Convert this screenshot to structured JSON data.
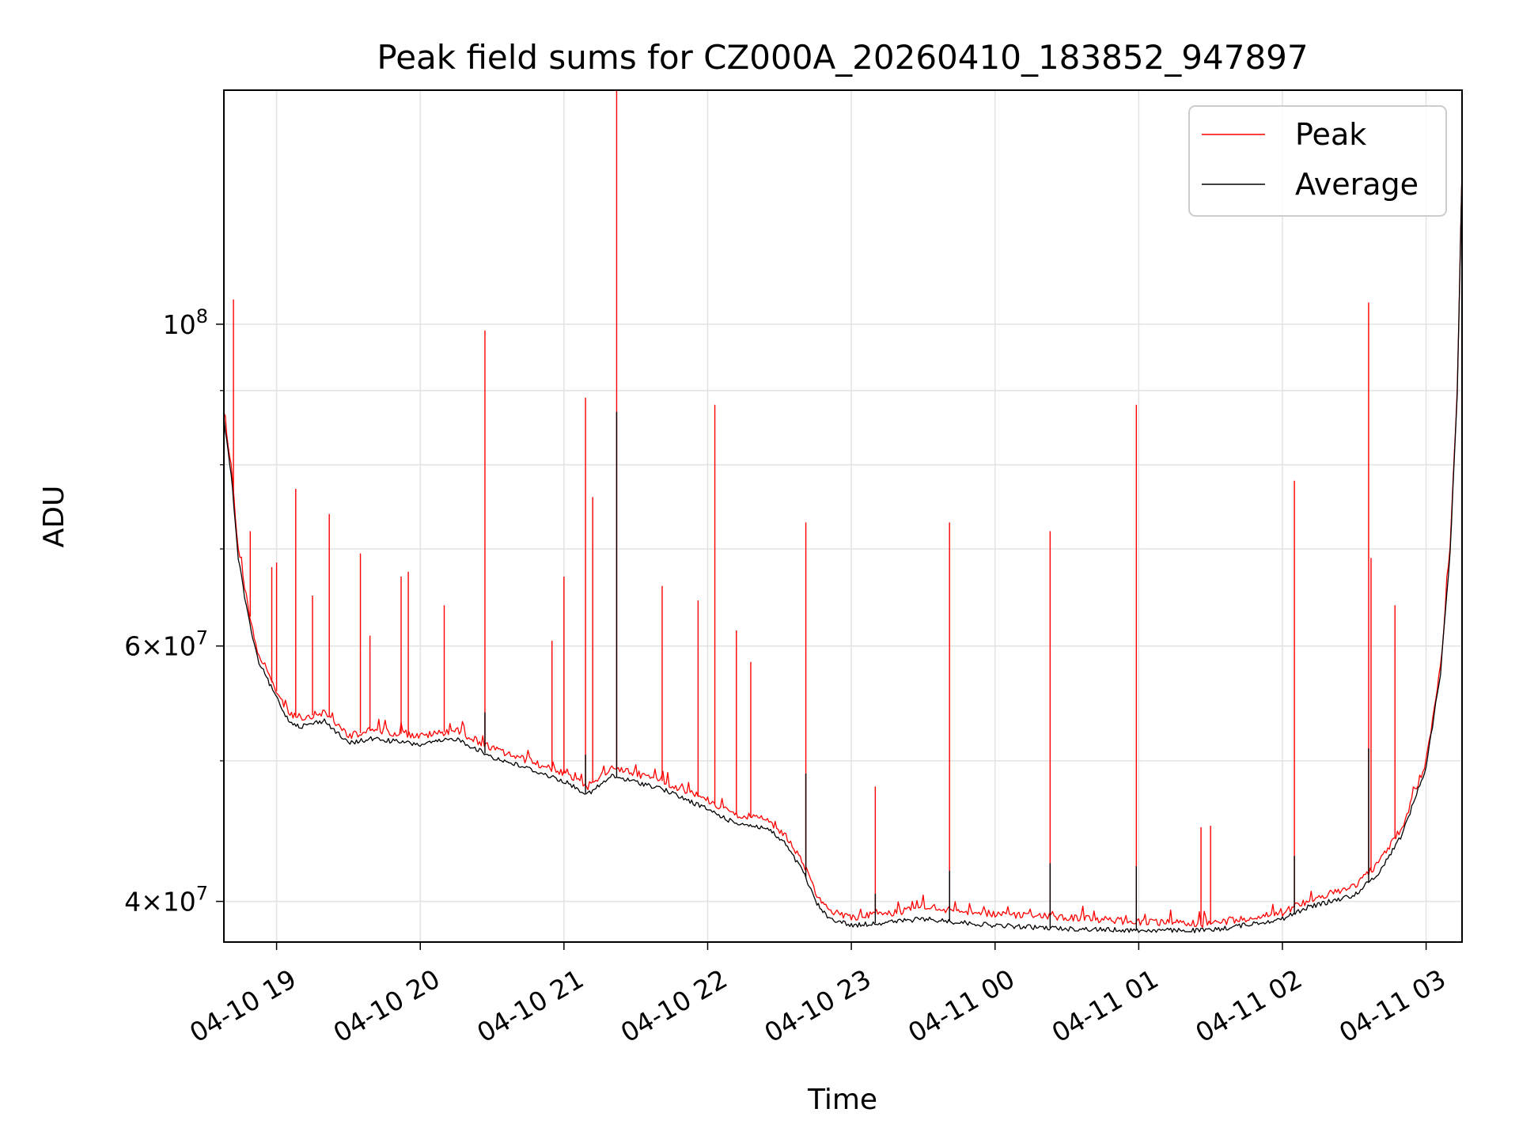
{
  "chart_data": {
    "type": "line",
    "title": "Peak field sums for CZ000A_20260410_183852_947897",
    "xlabel": "Time",
    "ylabel": "ADU",
    "yscale": "log",
    "xlim": [
      "2026-04-10 18:38",
      "2026-04-11 03:15"
    ],
    "ylim": [
      37500000,
      145000000
    ],
    "x_ticks": [
      {
        "value": "2026-04-10 19:00",
        "label": "04-10 19"
      },
      {
        "value": "2026-04-10 20:00",
        "label": "04-10 20"
      },
      {
        "value": "2026-04-10 21:00",
        "label": "04-10 21"
      },
      {
        "value": "2026-04-10 22:00",
        "label": "04-10 22"
      },
      {
        "value": "2026-04-10 23:00",
        "label": "04-10 23"
      },
      {
        "value": "2026-04-11 00:00",
        "label": "04-11 00"
      },
      {
        "value": "2026-04-11 01:00",
        "label": "04-11 01"
      },
      {
        "value": "2026-04-11 02:00",
        "label": "04-11 02"
      },
      {
        "value": "2026-04-11 03:00",
        "label": "04-11 03"
      }
    ],
    "y_ticks": [
      {
        "value": 100000000,
        "base": "10",
        "exp": "8"
      },
      {
        "value": 60000000,
        "coef": "6",
        "times": "×",
        "base": "10",
        "exp": "7"
      },
      {
        "value": 40000000,
        "coef": "4",
        "times": "×",
        "base": "10",
        "exp": "7"
      }
    ],
    "y_minor_ticks": [
      50000000,
      70000000,
      80000000,
      90000000
    ],
    "grid": true,
    "legend_position": "top-right",
    "series": [
      {
        "name": "Peak",
        "color": "#ff0000",
        "x": [
          "2026-04-10 18:38",
          "2026-04-10 18:41",
          "2026-04-10 18:44",
          "2026-04-10 18:48",
          "2026-04-10 18:52",
          "2026-04-10 18:57",
          "2026-04-10 19:05",
          "2026-04-10 19:10",
          "2026-04-10 19:20",
          "2026-04-10 19:30",
          "2026-04-10 19:40",
          "2026-04-10 20:00",
          "2026-04-10 20:15",
          "2026-04-10 20:30",
          "2026-04-10 20:45",
          "2026-04-10 21:00",
          "2026-04-10 21:10",
          "2026-04-10 21:20",
          "2026-04-10 21:40",
          "2026-04-10 22:00",
          "2026-04-10 22:10",
          "2026-04-10 22:25",
          "2026-04-10 22:32",
          "2026-04-10 22:40",
          "2026-04-10 22:45",
          "2026-04-10 22:50",
          "2026-04-10 23:00",
          "2026-04-10 23:15",
          "2026-04-10 23:30",
          "2026-04-11 00:00",
          "2026-04-11 00:30",
          "2026-04-11 01:00",
          "2026-04-11 01:30",
          "2026-04-11 02:00",
          "2026-04-11 02:10",
          "2026-04-11 02:30",
          "2026-04-11 02:40",
          "2026-04-11 02:50",
          "2026-04-11 03:00",
          "2026-04-11 03:06",
          "2026-04-11 03:10",
          "2026-04-11 03:13",
          "2026-04-11 03:15"
        ],
        "y": [
          87000000,
          80000000,
          70000000,
          64000000,
          59500000,
          57000000,
          54000000,
          53500000,
          54000000,
          52000000,
          52500000,
          52000000,
          52500000,
          51000000,
          50000000,
          49000000,
          48000000,
          49500000,
          48500000,
          47000000,
          46000000,
          45500000,
          44500000,
          42500000,
          40500000,
          39500000,
          39000000,
          39200000,
          39600000,
          39200000,
          39000000,
          38700000,
          38600000,
          39300000,
          40000000,
          41000000,
          42500000,
          45000000,
          50000000,
          58000000,
          70000000,
          90000000,
          128000000
        ],
        "spikes": [
          {
            "x": "2026-04-10 18:42",
            "y": 104000000
          },
          {
            "x": "2026-04-10 18:49",
            "y": 72000000
          },
          {
            "x": "2026-04-10 18:58",
            "y": 68000000
          },
          {
            "x": "2026-04-10 19:00",
            "y": 68500000
          },
          {
            "x": "2026-04-10 19:08",
            "y": 77000000
          },
          {
            "x": "2026-04-10 19:15",
            "y": 65000000
          },
          {
            "x": "2026-04-10 19:22",
            "y": 74000000
          },
          {
            "x": "2026-04-10 19:35",
            "y": 69500000
          },
          {
            "x": "2026-04-10 19:39",
            "y": 61000000
          },
          {
            "x": "2026-04-10 19:52",
            "y": 67000000
          },
          {
            "x": "2026-04-10 19:55",
            "y": 67500000
          },
          {
            "x": "2026-04-10 20:10",
            "y": 64000000
          },
          {
            "x": "2026-04-10 20:27",
            "y": 99000000
          },
          {
            "x": "2026-04-10 20:55",
            "y": 60500000
          },
          {
            "x": "2026-04-10 21:00",
            "y": 67000000
          },
          {
            "x": "2026-04-10 21:09",
            "y": 89000000
          },
          {
            "x": "2026-04-10 21:12",
            "y": 76000000
          },
          {
            "x": "2026-04-10 21:22",
            "y": 145000000
          },
          {
            "x": "2026-04-10 21:41",
            "y": 66000000
          },
          {
            "x": "2026-04-10 21:56",
            "y": 64500000
          },
          {
            "x": "2026-04-10 22:03",
            "y": 88000000
          },
          {
            "x": "2026-04-10 22:12",
            "y": 61500000
          },
          {
            "x": "2026-04-10 22:18",
            "y": 58500000
          },
          {
            "x": "2026-04-10 22:41",
            "y": 73000000
          },
          {
            "x": "2026-04-10 23:10",
            "y": 48000000
          },
          {
            "x": "2026-04-10 23:41",
            "y": 73000000
          },
          {
            "x": "2026-04-11 00:23",
            "y": 72000000
          },
          {
            "x": "2026-04-11 00:59",
            "y": 88000000
          },
          {
            "x": "2026-04-11 01:26",
            "y": 45000000
          },
          {
            "x": "2026-04-11 01:30",
            "y": 45100000
          },
          {
            "x": "2026-04-11 02:05",
            "y": 78000000
          },
          {
            "x": "2026-04-11 02:36",
            "y": 103500000
          },
          {
            "x": "2026-04-11 02:37",
            "y": 69000000
          },
          {
            "x": "2026-04-11 02:47",
            "y": 64000000
          }
        ]
      },
      {
        "name": "Average",
        "color": "#000000",
        "x": [
          "2026-04-10 18:38",
          "2026-04-10 18:41",
          "2026-04-10 18:44",
          "2026-04-10 18:48",
          "2026-04-10 18:52",
          "2026-04-10 18:57",
          "2026-04-10 19:05",
          "2026-04-10 19:10",
          "2026-04-10 19:20",
          "2026-04-10 19:30",
          "2026-04-10 19:40",
          "2026-04-10 20:00",
          "2026-04-10 20:15",
          "2026-04-10 20:30",
          "2026-04-10 20:45",
          "2026-04-10 21:00",
          "2026-04-10 21:10",
          "2026-04-10 21:20",
          "2026-04-10 21:40",
          "2026-04-10 22:00",
          "2026-04-10 22:10",
          "2026-04-10 22:25",
          "2026-04-10 22:32",
          "2026-04-10 22:40",
          "2026-04-10 22:45",
          "2026-04-10 22:50",
          "2026-04-10 23:00",
          "2026-04-10 23:15",
          "2026-04-10 23:30",
          "2026-04-11 00:00",
          "2026-04-11 00:30",
          "2026-04-11 01:00",
          "2026-04-11 01:30",
          "2026-04-11 02:00",
          "2026-04-11 02:10",
          "2026-04-11 02:30",
          "2026-04-11 02:40",
          "2026-04-11 02:50",
          "2026-04-11 03:00",
          "2026-04-11 03:06",
          "2026-04-11 03:10",
          "2026-04-11 03:13",
          "2026-04-11 03:15"
        ],
        "y": [
          86000000,
          79000000,
          69000000,
          63000000,
          58800000,
          56500000,
          53300000,
          52800000,
          53300000,
          51400000,
          51800000,
          51300000,
          51800000,
          50300000,
          49400000,
          48400000,
          47400000,
          48800000,
          47900000,
          46300000,
          45400000,
          44900000,
          43900000,
          41900000,
          40000000,
          39000000,
          38500000,
          38700000,
          38900000,
          38500000,
          38300000,
          38200000,
          38200000,
          38900000,
          39600000,
          40400000,
          41800000,
          44500000,
          49500000,
          57500000,
          69500000,
          89500000,
          128000000
        ],
        "spikes": [
          {
            "x": "2026-04-10 20:27",
            "y": 54000000
          },
          {
            "x": "2026-04-10 21:09",
            "y": 50500000
          },
          {
            "x": "2026-04-10 21:22",
            "y": 87000000
          },
          {
            "x": "2026-04-10 22:41",
            "y": 49000000
          },
          {
            "x": "2026-04-10 23:10",
            "y": 40500000
          },
          {
            "x": "2026-04-10 23:41",
            "y": 42000000
          },
          {
            "x": "2026-04-11 00:23",
            "y": 42500000
          },
          {
            "x": "2026-04-11 00:59",
            "y": 42300000
          },
          {
            "x": "2026-04-11 02:05",
            "y": 43000000
          },
          {
            "x": "2026-04-11 02:36",
            "y": 51000000
          }
        ]
      }
    ]
  }
}
